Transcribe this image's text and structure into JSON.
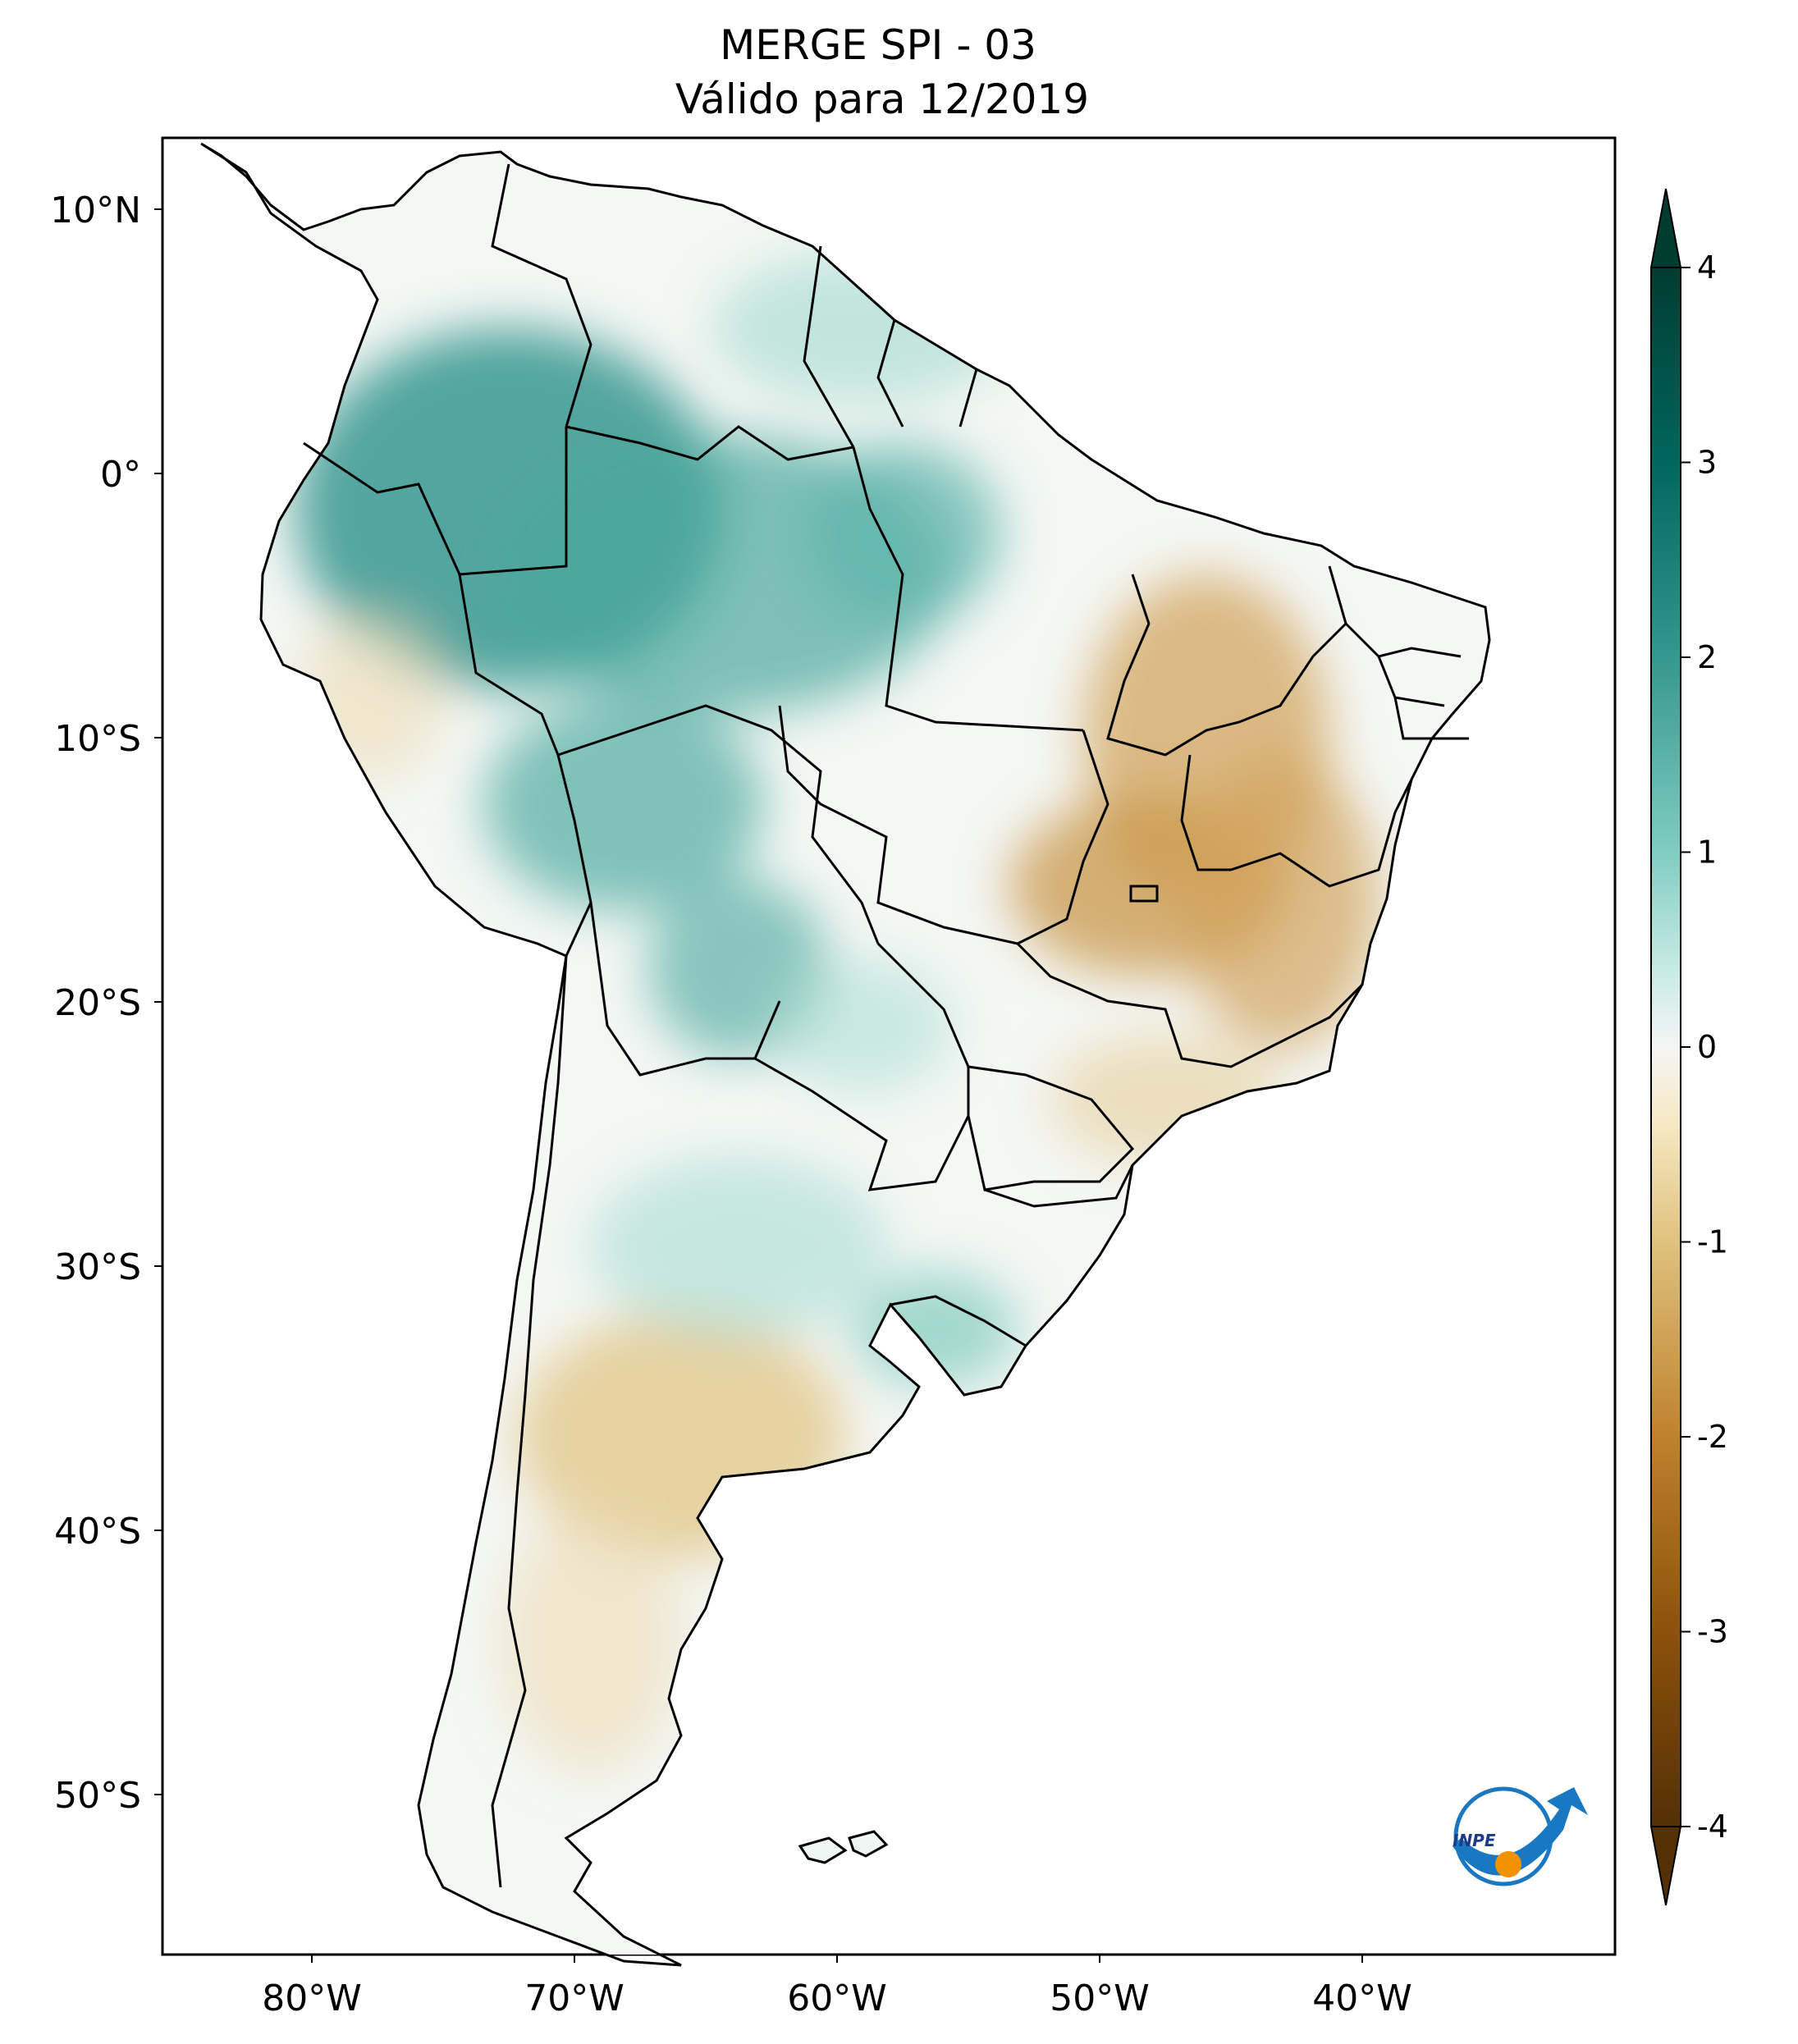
{
  "map": {
    "title_line1": "MERGE   SPI - 03",
    "title_line2": "Válido para 12/2019",
    "lon_ticks": [
      {
        "label": "80°W",
        "value": -80
      },
      {
        "label": "70°W",
        "value": -70
      },
      {
        "label": "60°W",
        "value": -60
      },
      {
        "label": "50°W",
        "value": -50
      },
      {
        "label": "40°W",
        "value": -40
      }
    ],
    "lat_ticks": [
      {
        "label": "10°N",
        "value": 10
      },
      {
        "label": "0°",
        "value": 0
      },
      {
        "label": "10°S",
        "value": -10
      },
      {
        "label": "20°S",
        "value": -20
      },
      {
        "label": "30°S",
        "value": -30
      },
      {
        "label": "40°S",
        "value": -40
      },
      {
        "label": "50°S",
        "value": -50
      }
    ],
    "extent": {
      "lon_min": -85,
      "lon_max": -30,
      "lat_min": -56,
      "lat_max": 13
    }
  },
  "colorbar": {
    "ticks": [
      {
        "label": "4",
        "value": 4
      },
      {
        "label": "3",
        "value": 3
      },
      {
        "label": "2",
        "value": 2
      },
      {
        "label": "1",
        "value": 1
      },
      {
        "label": "0",
        "value": 0
      },
      {
        "label": "-1",
        "value": -1
      },
      {
        "label": "-2",
        "value": -2
      },
      {
        "label": "-3",
        "value": -3
      },
      {
        "label": "-4",
        "value": -4
      }
    ],
    "range": [
      -4,
      4
    ],
    "extend": "both",
    "colors": {
      "max": "#003c30",
      "high": "#01665e",
      "mid_high": "#35978f",
      "low_high": "#80cdc1",
      "pale_high": "#c7eae5",
      "zero": "#f5f5f5",
      "pale_low": "#f6e8c3",
      "low_low": "#dfc27d",
      "mid_low": "#bf812d",
      "low": "#8c510a",
      "min": "#543005"
    }
  },
  "logo": {
    "text": "INPE",
    "colors": {
      "ring": "#1a78c2",
      "dot": "#f39200"
    }
  },
  "regions": [
    {
      "name": "amazon-wet",
      "spi": 2.5
    },
    {
      "name": "amazon-south-wet",
      "spi": 1.8
    },
    {
      "name": "pantanal-wet",
      "spi": 1.8
    },
    {
      "name": "guyana-wet",
      "spi": 1.0
    },
    {
      "name": "northeast-dry",
      "spi": -1.5
    },
    {
      "name": "goias-minas-dry",
      "spi": -1.8
    },
    {
      "name": "bahia-dry",
      "spi": -1.6
    },
    {
      "name": "argentina-dry",
      "spi": -1.4
    },
    {
      "name": "uruguay-wet",
      "spi": 1.5
    }
  ]
}
